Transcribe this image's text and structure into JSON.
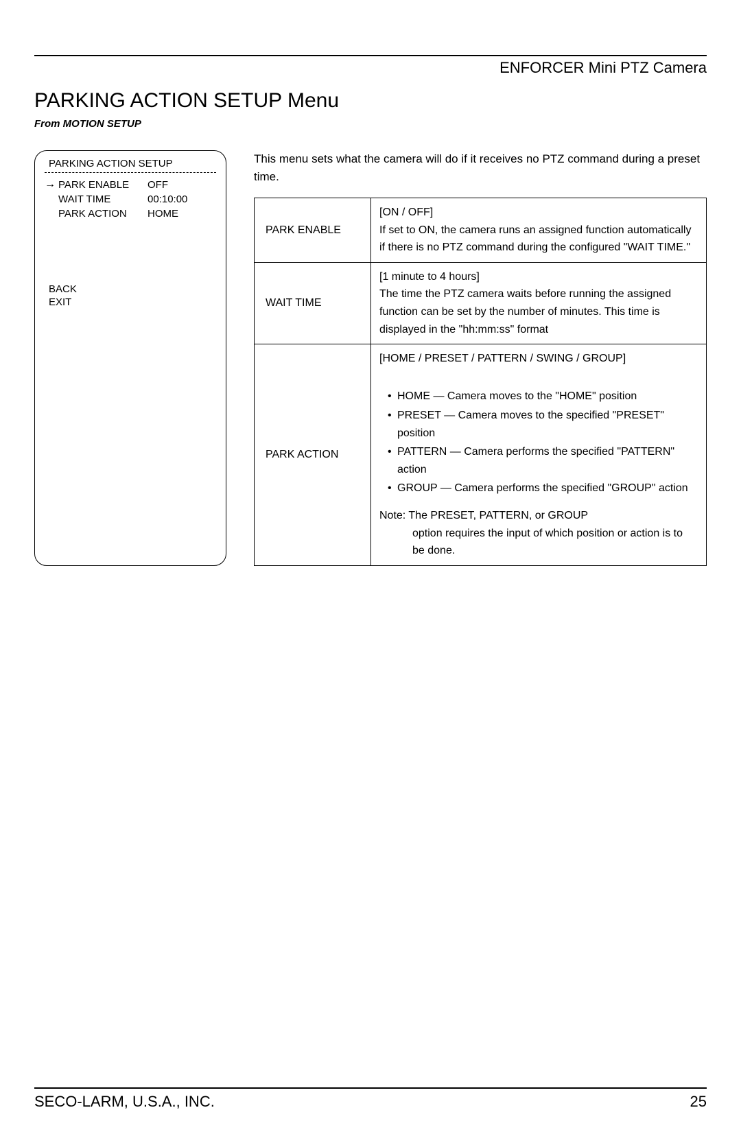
{
  "header": {
    "product_name": "ENFORCER Mini PTZ Camera"
  },
  "page_title": "PARKING ACTION SETUP Menu",
  "breadcrumb": "From MOTION SETUP",
  "menu_box": {
    "title": "PARKING ACTION SETUP",
    "rows": [
      {
        "selected": true,
        "label": "PARK ENABLE",
        "value": "OFF"
      },
      {
        "selected": false,
        "label": "WAIT TIME",
        "value": "00:10:00"
      },
      {
        "selected": false,
        "label": "PARK ACTION",
        "value": "HOME"
      }
    ],
    "footer": [
      "BACK",
      "EXIT"
    ]
  },
  "intro_text": "This menu sets what the camera will do if it receives no PTZ command during a preset time.",
  "table": {
    "rows": [
      {
        "name": "PARK ENABLE",
        "options": "[ON / OFF]",
        "desc": "If set to ON, the camera runs an assigned function automatically if there is no PTZ command during the configured \"WAIT TIME.\""
      },
      {
        "name": "WAIT TIME",
        "options": "[1 minute to 4 hours]",
        "desc": "The time the PTZ camera waits before running the assigned function can be set by the number of minutes. This time is displayed in the \"hh:mm:ss\" format"
      },
      {
        "name": "PARK ACTION",
        "options": "[HOME / PRESET / PATTERN / SWING / GROUP]",
        "bullets": [
          "HOME — Camera moves to the \"HOME\" position",
          "PRESET — Camera moves to the specified \"PRESET\" position",
          "PATTERN — Camera performs the specified \"PATTERN\" action",
          "GROUP — Camera performs the specified \"GROUP\" action"
        ],
        "note_label": "Note:",
        "note_text1": "The PRESET, PATTERN, or GROUP",
        "note_text2": "option requires the input of which position or action is to be done."
      }
    ]
  },
  "footer": {
    "company": "SECO-LARM, U.S.A., INC.",
    "page_number": "25"
  }
}
